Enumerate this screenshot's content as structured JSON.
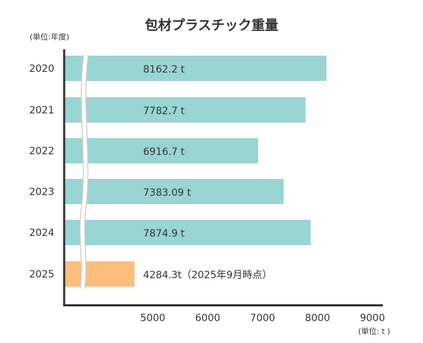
{
  "chart_data": {
    "type": "bar",
    "orientation": "horizontal",
    "title": "包材プラスチック重量",
    "ylabel": "(単位:年度)",
    "xlabel": "(単位: t )",
    "categories": [
      "2020",
      "2021",
      "2022",
      "2023",
      "2024",
      "2025"
    ],
    "values": [
      8162.2,
      7782.7,
      6916.7,
      7383.09,
      7874.9,
      4284.3
    ],
    "data_labels": [
      "8162.2 t",
      "7782.7 t",
      "6916.7 t",
      "7383.09 t",
      "7874.9 t",
      "4284.3t（2025年9月時点）"
    ],
    "xticks": [
      "5000",
      "6000",
      "7000",
      "8000",
      "9000"
    ],
    "xlim": [
      5000,
      9000
    ],
    "axis_break": true,
    "grid": false,
    "colors": {
      "bar": "#99d5d2",
      "highlight": "#fdbe7d",
      "axis": "#333333",
      "text": "#333333"
    }
  }
}
